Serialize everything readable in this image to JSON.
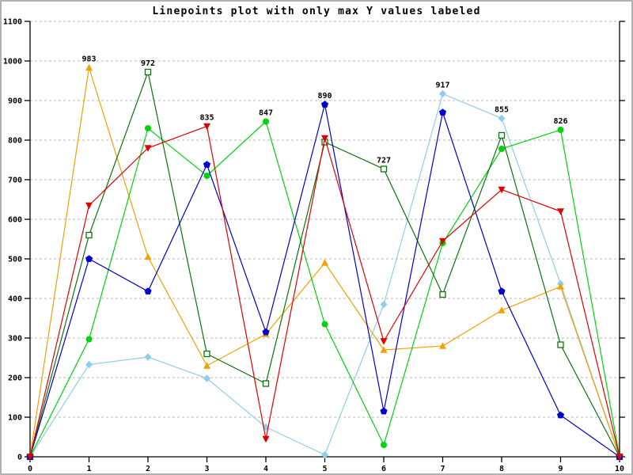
{
  "chart_data": {
    "type": "line",
    "title": "Linepoints plot with only max Y values labeled",
    "xlabel": "",
    "ylabel": "",
    "xlim": [
      0,
      10
    ],
    "ylim": [
      0,
      1100
    ],
    "x_ticks": [
      0,
      1,
      2,
      3,
      4,
      5,
      6,
      7,
      8,
      9,
      10
    ],
    "x_tick_labels": [
      "0",
      "1",
      "2",
      "3",
      "4",
      "5",
      "6",
      "7",
      "8",
      "9",
      "10"
    ],
    "y_ticks": [
      0,
      100,
      200,
      300,
      400,
      500,
      600,
      700,
      800,
      900,
      1000,
      1100
    ],
    "y_tick_labels": [
      "0",
      "100",
      "200",
      "300",
      "400",
      "500",
      "600",
      "700",
      "800",
      "900",
      "1000",
      "1100"
    ],
    "grid": "horizontal-dashed",
    "grid_color": "#b8b8b8",
    "axis_color": "#000000",
    "legend": "none",
    "x": [
      0,
      1,
      2,
      3,
      4,
      5,
      6,
      7,
      8,
      9,
      10
    ],
    "series": [
      {
        "name": "skyblue-diamond",
        "color": "#8fceea",
        "marker": "diamond",
        "values": [
          0,
          233,
          252,
          198,
          75,
          5,
          385,
          917,
          855,
          437,
          0
        ]
      },
      {
        "name": "orange-triangle",
        "color": "#f0a202",
        "marker": "triangle-up",
        "values": [
          0,
          983,
          505,
          230,
          310,
          490,
          270,
          280,
          370,
          430,
          0
        ]
      },
      {
        "name": "green-circle",
        "color": "#00d40c",
        "marker": "circle",
        "values": [
          0,
          297,
          830,
          710,
          847,
          335,
          30,
          540,
          778,
          826,
          0
        ]
      },
      {
        "name": "darkgreen-square",
        "color": "#0d720d",
        "marker": "square-open",
        "values": [
          0,
          560,
          972,
          260,
          185,
          795,
          727,
          410,
          812,
          283,
          0
        ]
      },
      {
        "name": "blue-pentagon",
        "color": "#0000cf",
        "marker": "pentagon",
        "values": [
          0,
          500,
          418,
          738,
          315,
          890,
          115,
          870,
          418,
          105,
          0
        ]
      },
      {
        "name": "red-triangle-down",
        "color": "#e00000",
        "marker": "triangle-down",
        "values": [
          0,
          635,
          780,
          835,
          45,
          805,
          292,
          545,
          675,
          620,
          0
        ]
      }
    ],
    "point_labels": [
      {
        "x": 1,
        "y": 983,
        "text": "983"
      },
      {
        "x": 2,
        "y": 972,
        "text": "972"
      },
      {
        "x": 3,
        "y": 835,
        "text": "835"
      },
      {
        "x": 4,
        "y": 847,
        "text": "847"
      },
      {
        "x": 5,
        "y": 890,
        "text": "890"
      },
      {
        "x": 6,
        "y": 727,
        "text": "727"
      },
      {
        "x": 7,
        "y": 917,
        "text": "917"
      },
      {
        "x": 8,
        "y": 855,
        "text": "855"
      },
      {
        "x": 9,
        "y": 826,
        "text": "826"
      }
    ]
  }
}
